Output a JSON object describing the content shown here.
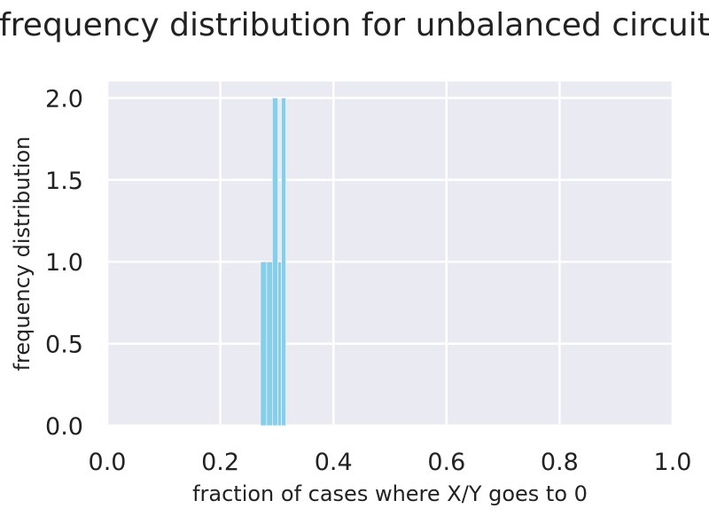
{
  "chart_data": {
    "type": "bar",
    "title": "frequency distribution for unbalanced circuit",
    "xlabel": "fraction of cases where X/Y goes to 0",
    "ylabel": "frequency distribution",
    "xlim": [
      0.0,
      1.0
    ],
    "ylim": [
      0.0,
      2.1
    ],
    "xticks": [
      "0.0",
      "0.2",
      "0.4",
      "0.6",
      "0.8",
      "1.0"
    ],
    "yticks": [
      "0.0",
      "0.5",
      "1.0",
      "1.5",
      "2.0"
    ],
    "grid": true,
    "bar_color": "#87ceeb",
    "background_color": "#eaeaf2",
    "grid_color": "#ffffff",
    "bins": [
      {
        "x0": 0.271,
        "x1": 0.282,
        "value": 1
      },
      {
        "x0": 0.282,
        "x1": 0.292,
        "value": 1
      },
      {
        "x0": 0.292,
        "x1": 0.302,
        "value": 2
      },
      {
        "x0": 0.302,
        "x1": 0.308,
        "value": 1
      },
      {
        "x0": 0.308,
        "x1": 0.316,
        "value": 2
      }
    ]
  }
}
